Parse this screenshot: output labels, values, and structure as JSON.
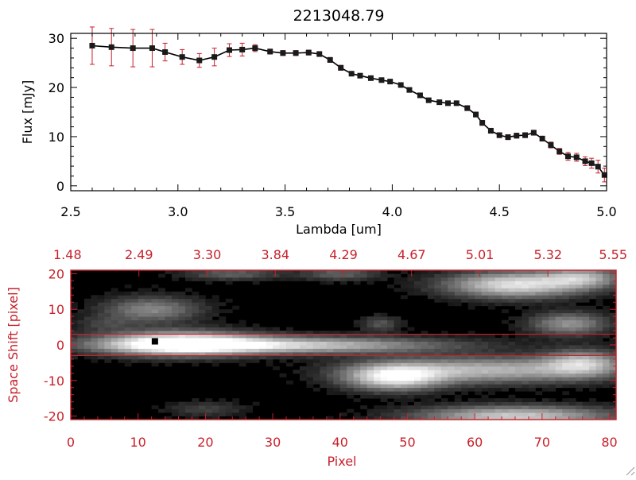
{
  "chart_data": [
    {
      "type": "line",
      "title": "2213048.79",
      "xlabel": "Lambda [um]",
      "ylabel": "Flux [mJy]",
      "xlim": [
        2.5,
        5.0
      ],
      "ylim": [
        -1,
        31
      ],
      "xticks": [
        "2.5",
        "3.0",
        "3.5",
        "4.0",
        "4.5",
        "5.0"
      ],
      "yticks": [
        "0",
        "10",
        "20",
        "30"
      ],
      "series": [
        {
          "name": "Flux",
          "x": [
            2.6,
            2.69,
            2.79,
            2.88,
            2.94,
            3.02,
            3.1,
            3.17,
            3.24,
            3.3,
            3.36,
            3.43,
            3.49,
            3.55,
            3.61,
            3.66,
            3.71,
            3.76,
            3.81,
            3.85,
            3.9,
            3.95,
            3.99,
            4.04,
            4.08,
            4.13,
            4.17,
            4.22,
            4.26,
            4.3,
            4.35,
            4.39,
            4.42,
            4.46,
            4.5,
            4.54,
            4.58,
            4.62,
            4.66,
            4.7,
            4.74,
            4.78,
            4.82,
            4.86,
            4.9,
            4.93,
            4.96,
            4.99
          ],
          "y": [
            28.5,
            28.2,
            28.0,
            28.0,
            27.2,
            26.2,
            25.5,
            26.2,
            27.6,
            27.7,
            28.0,
            27.3,
            27.0,
            27.0,
            27.1,
            26.8,
            25.6,
            24.0,
            22.8,
            22.4,
            21.9,
            21.5,
            21.2,
            20.5,
            19.5,
            18.4,
            17.4,
            17.0,
            16.8,
            16.8,
            15.8,
            14.5,
            12.8,
            11.2,
            10.3,
            9.9,
            10.2,
            10.3,
            10.8,
            9.6,
            8.3,
            7.0,
            6.0,
            5.8,
            5.0,
            4.6,
            3.9,
            2.2
          ],
          "yerr": [
            3.8,
            3.8,
            3.8,
            3.8,
            1.8,
            1.5,
            1.4,
            1.8,
            1.3,
            1.3,
            0.7,
            0.5,
            0.5,
            0.5,
            0.5,
            0.5,
            0.5,
            0.5,
            0.4,
            0.4,
            0.4,
            0.4,
            0.4,
            0.4,
            0.4,
            0.4,
            0.4,
            0.4,
            0.4,
            0.4,
            0.5,
            0.5,
            0.5,
            0.5,
            0.5,
            0.5,
            0.5,
            0.5,
            0.5,
            0.5,
            0.6,
            0.6,
            0.8,
            0.8,
            0.9,
            1.0,
            1.3,
            1.4
          ]
        }
      ]
    },
    {
      "type": "heatmap",
      "xlabel": "Pixel",
      "ylabel": "Space Shift [pixel]",
      "xlim": [
        0,
        81
      ],
      "ylim": [
        -21,
        21
      ],
      "xticks": [
        "0",
        "10",
        "20",
        "30",
        "40",
        "50",
        "60",
        "70",
        "80"
      ],
      "yticks": [
        "-20",
        "-10",
        "0",
        "10",
        "20"
      ],
      "top_axis_labels": [
        "1.48",
        "2.49",
        "3.30",
        "3.84",
        "4.29",
        "4.67",
        "5.01",
        "5.32",
        "5.55"
      ],
      "extraction_window": [
        -3,
        3
      ],
      "source_marker": {
        "pixel": 12.5,
        "shift": 1
      },
      "blobs": [
        {
          "pixel": 16,
          "shift": 0.5,
          "sx": 8,
          "sy": 2.3,
          "a": 1.0
        },
        {
          "pixel": 32,
          "shift": 0,
          "sx": 16,
          "sy": 1.6,
          "a": 0.75
        },
        {
          "pixel": 12,
          "shift": 10,
          "sx": 5,
          "sy": 2.5,
          "a": 0.45
        },
        {
          "pixel": 24,
          "shift": 20,
          "sx": 5,
          "sy": 1.2,
          "a": 0.3
        },
        {
          "pixel": 40,
          "shift": 20,
          "sx": 4,
          "sy": 1.3,
          "a": 0.3
        },
        {
          "pixel": 48,
          "shift": -9,
          "sx": 5,
          "sy": 2.5,
          "a": 0.85
        },
        {
          "pixel": 62,
          "shift": -7,
          "sx": 12,
          "sy": 2.5,
          "a": 0.65
        },
        {
          "pixel": 76,
          "shift": -5,
          "sx": 4,
          "sy": 2.5,
          "a": 0.6
        },
        {
          "pixel": 66,
          "shift": 17,
          "sx": 7,
          "sy": 2.5,
          "a": 0.85
        },
        {
          "pixel": 76,
          "shift": 19,
          "sx": 4,
          "sy": 2,
          "a": 0.55
        },
        {
          "pixel": 74,
          "shift": 6,
          "sx": 4,
          "sy": 2.2,
          "a": 0.5
        },
        {
          "pixel": 66,
          "shift": -20,
          "sx": 10,
          "sy": 2,
          "a": 0.75
        },
        {
          "pixel": 46,
          "shift": 6,
          "sx": 2,
          "sy": 1.5,
          "a": 0.25
        },
        {
          "pixel": 20,
          "shift": -18,
          "sx": 4,
          "sy": 1.5,
          "a": 0.18
        },
        {
          "pixel": 5,
          "shift": 6,
          "sx": 3,
          "sy": 1.5,
          "a": 0.15
        }
      ]
    }
  ],
  "colors": {
    "axis": "#000000",
    "line": "#000000",
    "errorbar": "#c8202a",
    "marker": "#1a1a1a",
    "accent": "#c8202a"
  }
}
